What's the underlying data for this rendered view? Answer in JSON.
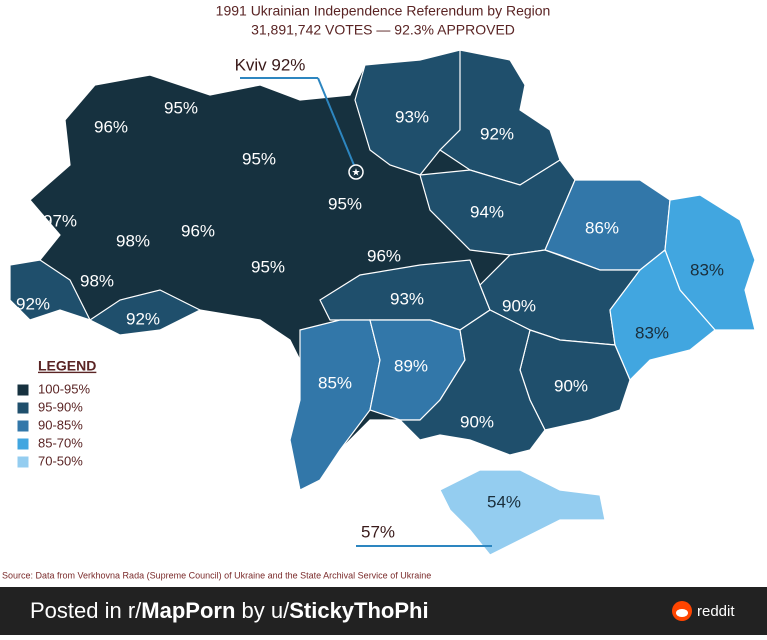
{
  "title": "1991 Ukrainian Independence Referendum by Region",
  "subtitle": "31,891,742 VOTES — 92.3% APPROVED",
  "callouts": {
    "kyiv": "Kviv 92%",
    "sevastopol": "57%"
  },
  "legend": {
    "title": "LEGEND",
    "items": [
      {
        "label": "100-95%",
        "color": "#16313f"
      },
      {
        "label": "95-90%",
        "color": "#1f4f6c"
      },
      {
        "label": "90-85%",
        "color": "#3277a9"
      },
      {
        "label": "85-70%",
        "color": "#41a6e0"
      },
      {
        "label": "70-50%",
        "color": "#94cdf0"
      }
    ]
  },
  "regions": [
    {
      "label": "96%",
      "color": "#16313f"
    },
    {
      "label": "95%",
      "color": "#16313f"
    },
    {
      "label": "95%",
      "color": "#16313f"
    },
    {
      "label": "93%",
      "color": "#1f4f6c"
    },
    {
      "label": "92%",
      "color": "#1f4f6c"
    },
    {
      "label": "97%",
      "color": "#16313f"
    },
    {
      "label": "98%",
      "color": "#16313f"
    },
    {
      "label": "96%",
      "color": "#16313f"
    },
    {
      "label": "95%",
      "color": "#16313f"
    },
    {
      "label": "94%",
      "color": "#1f4f6c"
    },
    {
      "label": "86%",
      "color": "#3277a9"
    },
    {
      "label": "83%",
      "color": "#41a6e0"
    },
    {
      "label": "98%",
      "color": "#16313f"
    },
    {
      "label": "95%",
      "color": "#16313f"
    },
    {
      "label": "96%",
      "color": "#16313f"
    },
    {
      "label": "92%",
      "color": "#1f4f6c"
    },
    {
      "label": "92%",
      "color": "#1f4f6c"
    },
    {
      "label": "93%",
      "color": "#1f4f6c"
    },
    {
      "label": "90%",
      "color": "#1f4f6c"
    },
    {
      "label": "83%",
      "color": "#41a6e0"
    },
    {
      "label": "85%",
      "color": "#3277a9"
    },
    {
      "label": "89%",
      "color": "#3277a9"
    },
    {
      "label": "90%",
      "color": "#1f4f6c"
    },
    {
      "label": "90%",
      "color": "#1f4f6c"
    },
    {
      "label": "54%",
      "color": "#94cdf0"
    }
  ],
  "source": "Source: Data from Verkhovna Rada (Supreme Council) of Ukraine and the State Archival Service of Ukraine",
  "footer": {
    "prefix": "Posted in r/",
    "subreddit": "MapPorn",
    "by": " by u/",
    "user": "StickyThoPhi",
    "brand": "reddit"
  }
}
